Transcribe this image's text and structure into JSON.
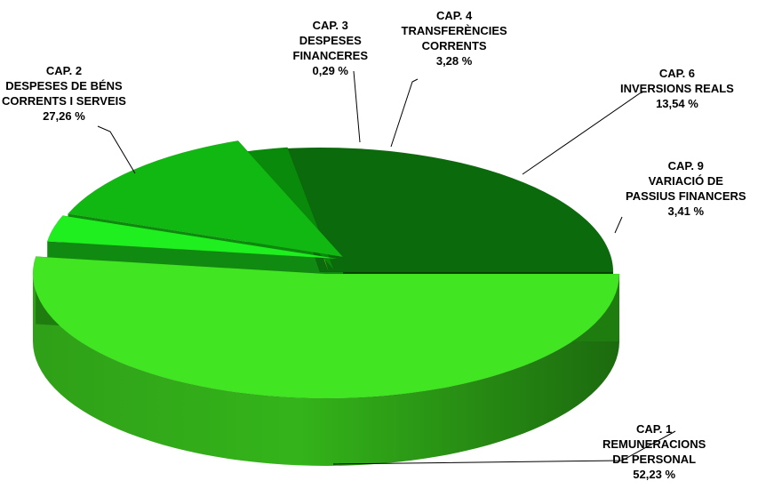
{
  "chart_data": {
    "type": "pie",
    "style": "3d-exploded",
    "legend": "none",
    "slices": [
      {
        "key": "cap1",
        "lines": [
          "CAP. 1",
          "REMUNERACIONS",
          "DE PERSONAL"
        ],
        "value_label": "52,23 %",
        "value": 52.23,
        "color": "#41e522"
      },
      {
        "key": "cap9",
        "lines": [
          "CAP. 9",
          "VARIACIÓ DE",
          "PASSIUS FINANCERS"
        ],
        "value_label": "3,41 %",
        "value": 3.41,
        "color": "#1fef1f"
      },
      {
        "key": "cap6",
        "lines": [
          "CAP. 6",
          "INVERSIONS REALS"
        ],
        "value_label": "13,54 %",
        "value": 13.54,
        "color": "#12b812"
      },
      {
        "key": "cap4",
        "lines": [
          "CAP. 4",
          "TRANSFERÈNCIES",
          "CORRENTS"
        ],
        "value_label": "3,28 %",
        "value": 3.28,
        "color": "#0a8a0a"
      },
      {
        "key": "cap3",
        "lines": [
          "CAP. 3",
          "DESPESES",
          "FINANCERES"
        ],
        "value_label": "0,29 %",
        "value": 0.29,
        "color": "#9be23a"
      },
      {
        "key": "cap2",
        "lines": [
          "CAP. 2",
          "DESPESES DE BÉNS",
          "CORRENTS I SERVEIS"
        ],
        "value_label": "27,26 %",
        "value": 27.26,
        "color": "#0b6a0b"
      }
    ]
  }
}
